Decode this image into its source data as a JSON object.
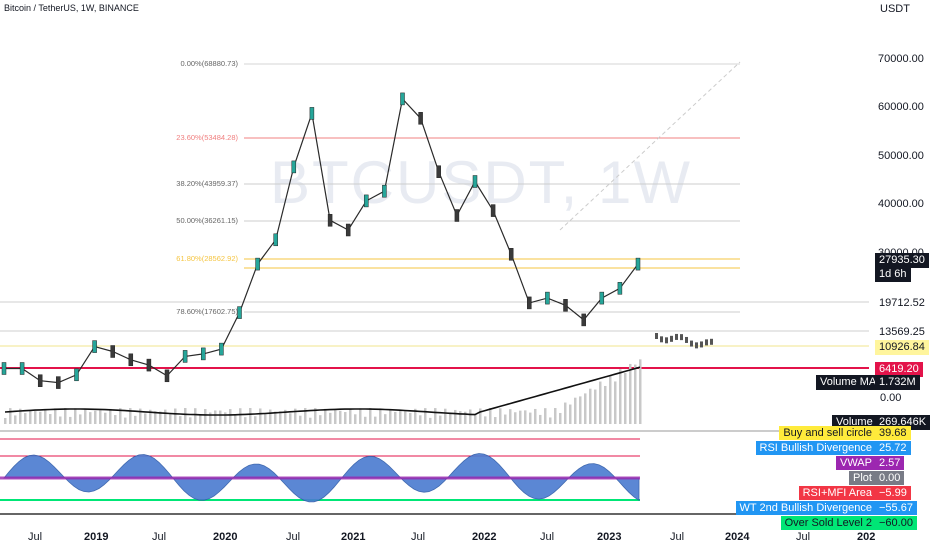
{
  "header": {
    "title": "Bitcoin / TetherUS, 1W, BINANCE",
    "unit": "USDT",
    "watermark": "BTCUSDT, 1W"
  },
  "price_axis": {
    "ticks": [
      "70000.00",
      "60000.00",
      "50000.00",
      "40000.00",
      "30000.00"
    ],
    "last_price": "27935.30",
    "countdown": "1d 6h",
    "levels": [
      {
        "value": "19712.52",
        "color": "#ffffff",
        "text_color": "#131722"
      },
      {
        "value": "13569.25",
        "color": "#ffffff",
        "text_color": "#131722"
      },
      {
        "value": "10926.84",
        "color": "#fff59d",
        "text_color": "#131722"
      },
      {
        "value": "6419.20",
        "color": "#e3134a",
        "text_color": "#ffffff"
      }
    ],
    "volume_ma_label": "Volume MA",
    "volume_ma_value": "1.732M",
    "zero": "0.00",
    "volume_label": "Volume",
    "volume_value": "269.646K"
  },
  "fib_levels": [
    {
      "label": "0.00%(68880.73)",
      "color": "#d6d6d6"
    },
    {
      "label": "23.60%(53484.28)",
      "color": "#f08080"
    },
    {
      "label": "38.20%(43959.37)",
      "color": "#cccccc"
    },
    {
      "label": "50.00%(36261.15)",
      "color": "#cccccc"
    },
    {
      "label": "61.80%(28562.92)",
      "color": "#f5c542"
    },
    {
      "label": "78.60%(17602.75)",
      "color": "#cccccc"
    }
  ],
  "indicators": [
    {
      "name": "Buy and sell circle",
      "value": "39.68",
      "bg": "#ffeb3b",
      "vbg": "#ffeb3b",
      "color": "#131722",
      "vcolor": "#131722"
    },
    {
      "name": "RSI Bullish Divergence",
      "value": "25.72",
      "bg": "#2196f3",
      "vbg": "#2196f3",
      "color": "#ffffff",
      "vcolor": "#ffffff"
    },
    {
      "name": "VWAP",
      "value": "2.57",
      "bg": "#9c27b0",
      "vbg": "#9c27b0",
      "color": "#ffffff",
      "vcolor": "#ffffff"
    },
    {
      "name": "Plot",
      "value": "0.00",
      "bg": "#787b86",
      "vbg": "#787b86",
      "color": "#ffffff",
      "vcolor": "#ffffff"
    },
    {
      "name": "RSI+MFI Area",
      "value": "−5.99",
      "bg": "#f23645",
      "vbg": "#f23645",
      "color": "#ffffff",
      "vcolor": "#ffffff"
    },
    {
      "name": "WT 2nd Bullish Divergence",
      "value": "−55.67",
      "bg": "#2196f3",
      "vbg": "#2196f3",
      "color": "#ffffff",
      "vcolor": "#ffffff"
    },
    {
      "name": "Over Sold Level 2",
      "value": "−60.00",
      "bg": "#00e676",
      "vbg": "#00e676",
      "color": "#131722",
      "vcolor": "#131722"
    }
  ],
  "time_axis": [
    {
      "label": "Jul",
      "bold": false
    },
    {
      "label": "2019",
      "bold": true
    },
    {
      "label": "Jul",
      "bold": false
    },
    {
      "label": "2020",
      "bold": true
    },
    {
      "label": "Jul",
      "bold": false
    },
    {
      "label": "2021",
      "bold": true
    },
    {
      "label": "Jul",
      "bold": false
    },
    {
      "label": "2022",
      "bold": true
    },
    {
      "label": "Jul",
      "bold": false
    },
    {
      "label": "2023",
      "bold": true
    },
    {
      "label": "Jul",
      "bold": false
    },
    {
      "label": "2024",
      "bold": true
    },
    {
      "label": "Jul",
      "bold": false
    },
    {
      "label": "202",
      "bold": true
    }
  ],
  "chart_data": {
    "type": "line",
    "description_series": "Approximate weekly closing prices of Bitcoin in USDT",
    "x": [
      "2018-06",
      "2018-09",
      "2018-11",
      "2019-01",
      "2019-04",
      "2019-06",
      "2019-08",
      "2019-10",
      "2019-12",
      "2020-03",
      "2020-05",
      "2020-07",
      "2020-09",
      "2020-11",
      "2020-12",
      "2021-01",
      "2021-02",
      "2021-04",
      "2021-05",
      "2021-06",
      "2021-07",
      "2021-09",
      "2021-10",
      "2021-11",
      "2021-12",
      "2022-01",
      "2022-03",
      "2022-04",
      "2022-05",
      "2022-06",
      "2022-08",
      "2022-09",
      "2022-11",
      "2023-01",
      "2023-02",
      "2023-04"
    ],
    "series": [
      {
        "values": [
          6500,
          6500,
          4000,
          3600,
          5200,
          11000,
          10000,
          8300,
          7200,
          5000,
          9000,
          9500,
          10500,
          18000,
          28000,
          33000,
          48000,
          59000,
          37000,
          35000,
          41000,
          43000,
          62000,
          58000,
          47000,
          38000,
          45000,
          39000,
          30000,
          20000,
          21000,
          19500,
          16500,
          21000,
          23000,
          28000
        ]
      }
    ],
    "volume_series_label": "Volume",
    "ylim": [
      0,
      72000
    ]
  }
}
